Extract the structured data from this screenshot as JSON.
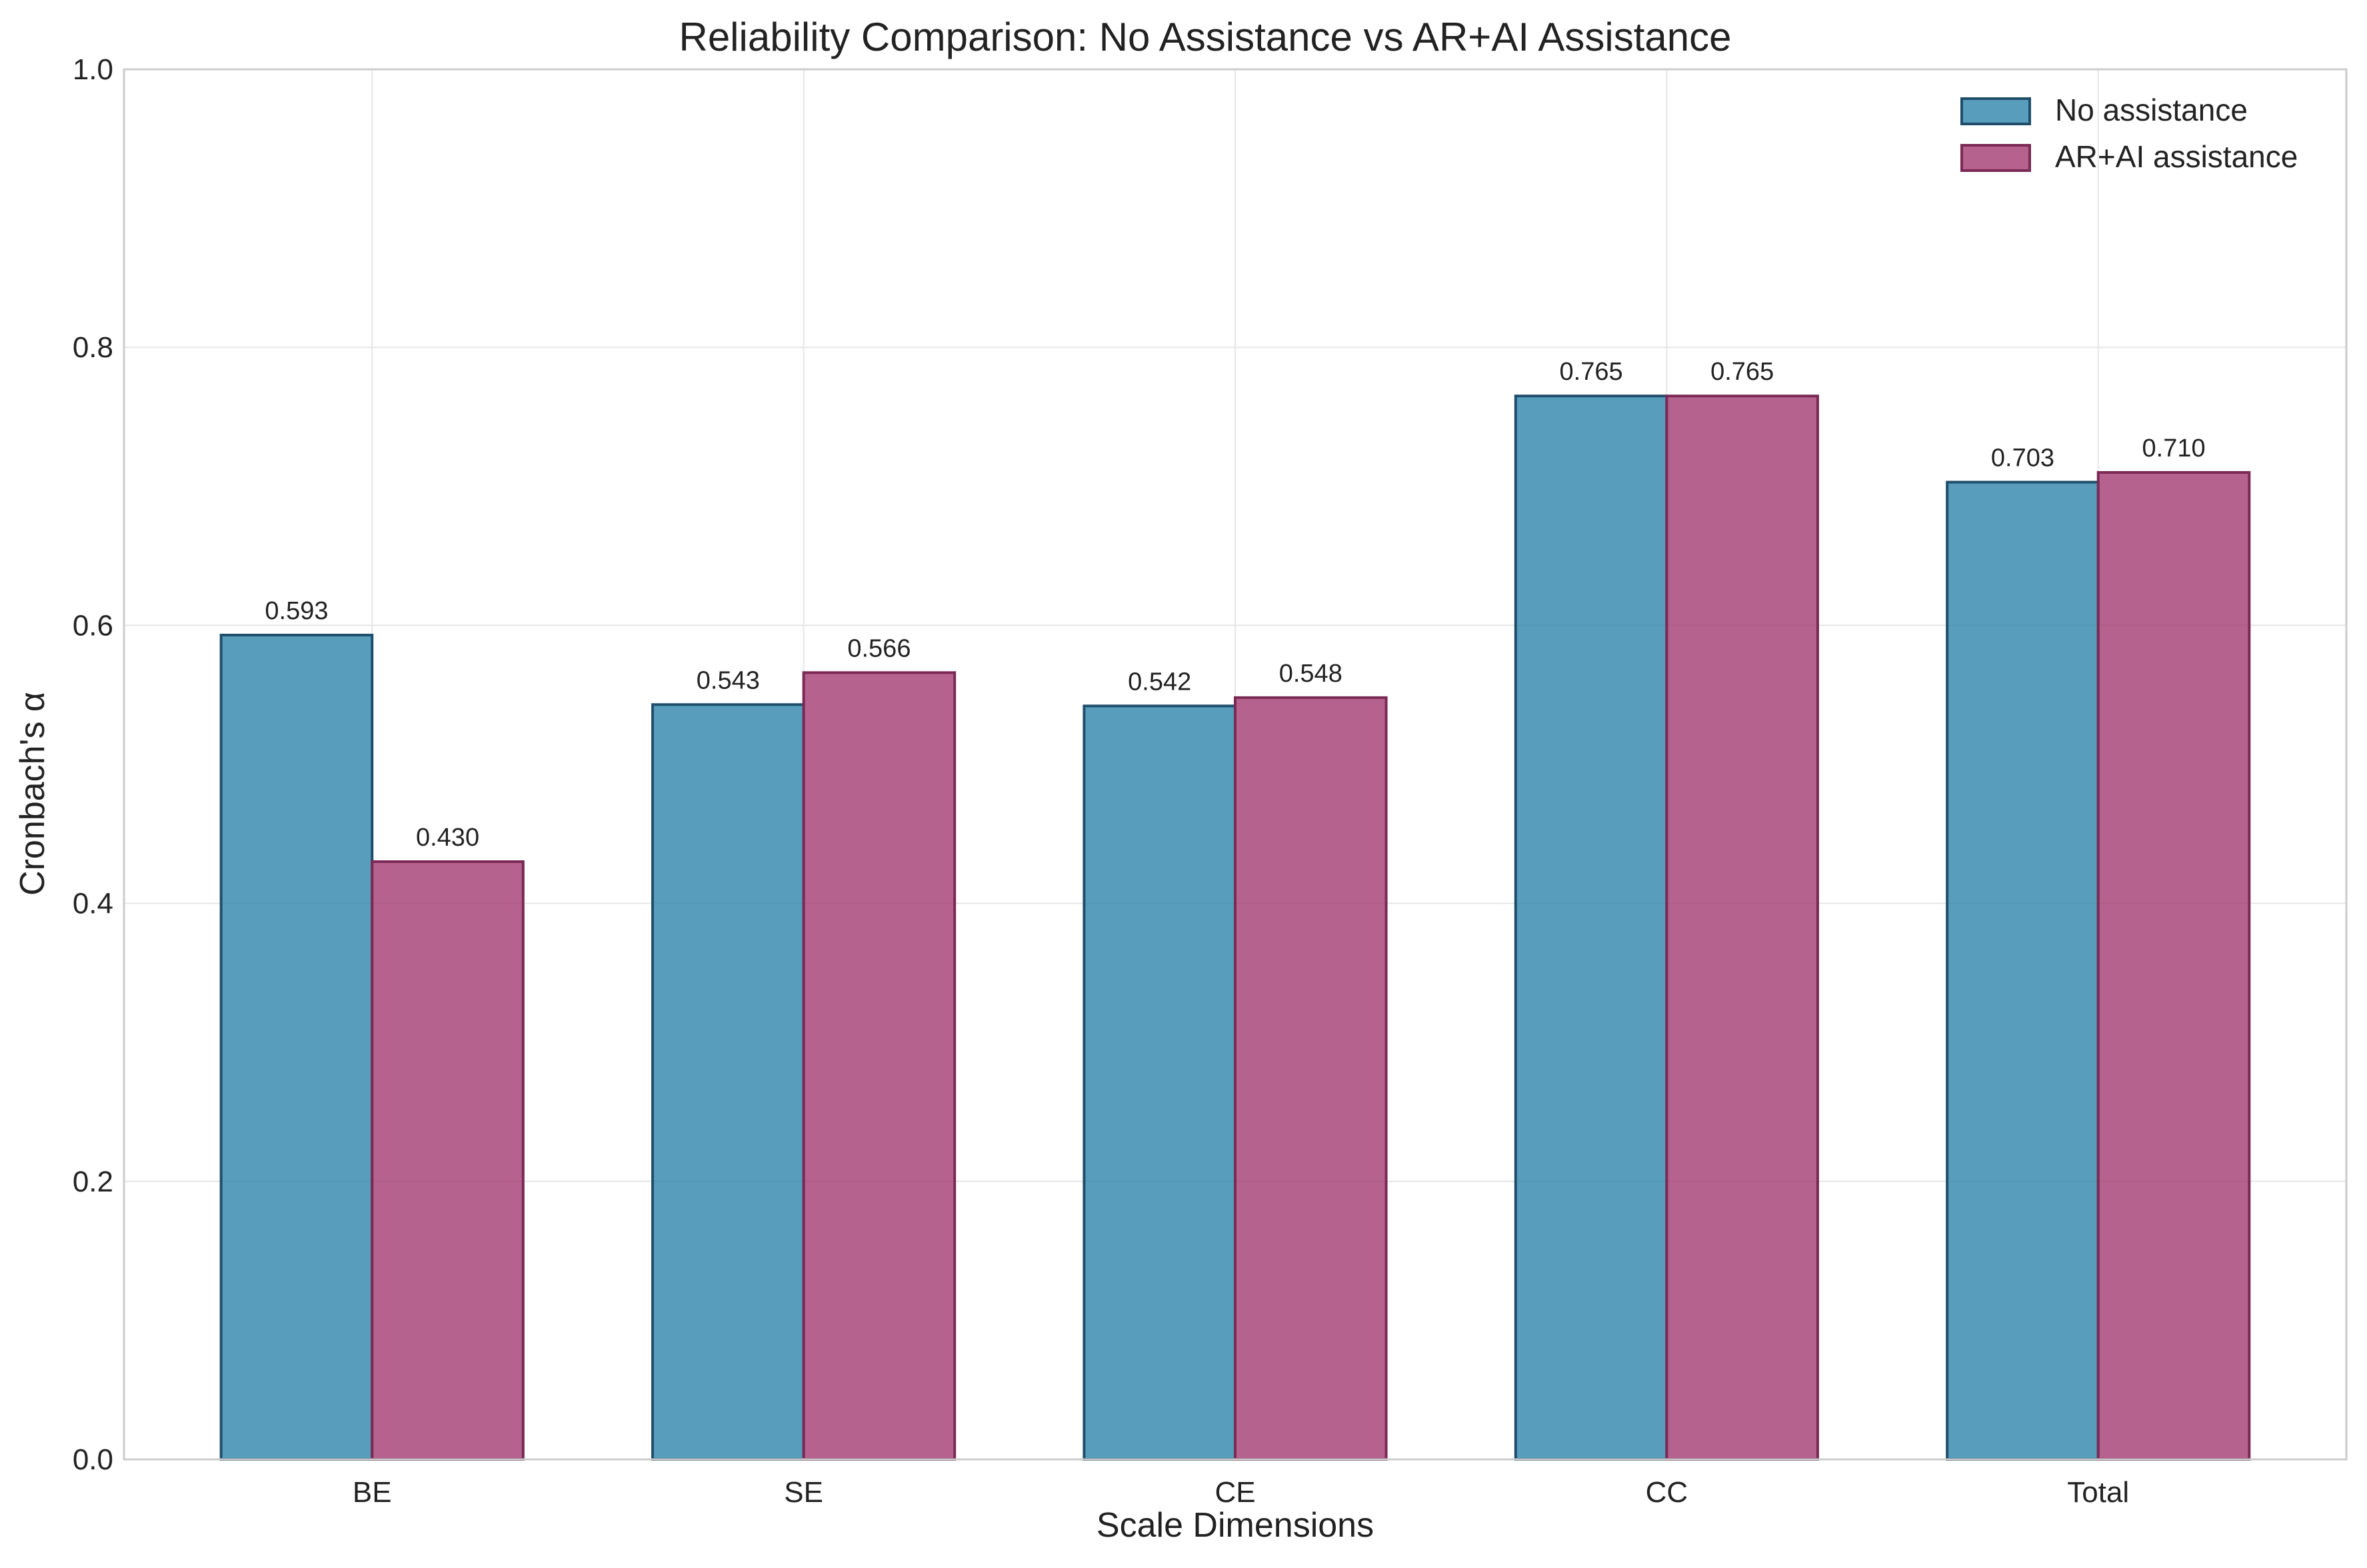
{
  "chart_data": {
    "type": "bar",
    "title": "Reliability Comparison: No Assistance vs AR+AI Assistance",
    "xlabel": "Scale Dimensions",
    "ylabel": "Cronbach's α",
    "categories": [
      "BE",
      "SE",
      "CE",
      "CC",
      "Total"
    ],
    "series": [
      {
        "name": "No assistance",
        "values": [
          0.593,
          0.543,
          0.542,
          0.765,
          0.703
        ],
        "labels": [
          "0.593",
          "0.543",
          "0.542",
          "0.765",
          "0.703"
        ],
        "color": "#2E86AB",
        "edge": "#1F4E6B"
      },
      {
        "name": "AR+AI assistance",
        "values": [
          0.43,
          0.566,
          0.548,
          0.765,
          0.71
        ],
        "labels": [
          "0.430",
          "0.566",
          "0.548",
          "0.765",
          "0.710"
        ],
        "color": "#A23B72",
        "edge": "#7A2A55"
      }
    ],
    "ylim": [
      0,
      1.0
    ],
    "yticks": [
      0.0,
      0.2,
      0.4,
      0.6,
      0.8,
      1.0
    ],
    "ytick_labels": [
      "0.0",
      "0.2",
      "0.4",
      "0.6",
      "0.8",
      "1.0"
    ],
    "grid": true,
    "legend_position": "top-right"
  }
}
